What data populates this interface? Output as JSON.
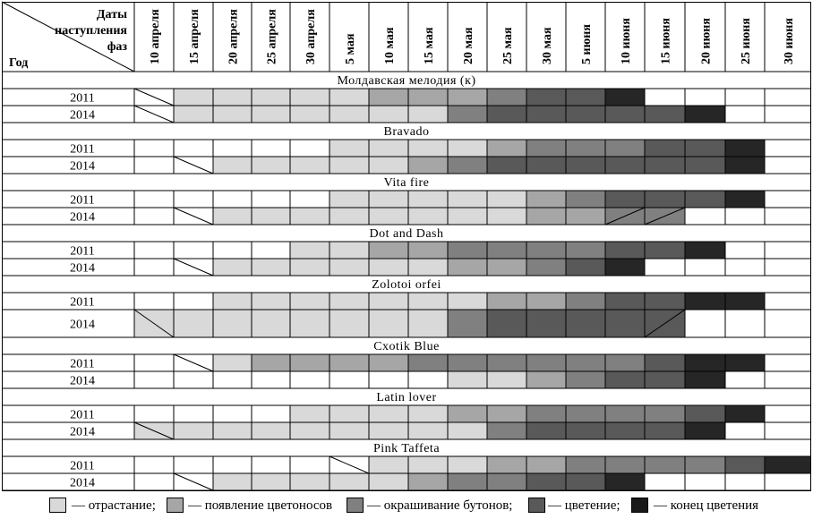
{
  "header": {
    "corner_dates_label_line1": "Даты",
    "corner_dates_label_line2": "наступления",
    "corner_dates_label_line3": "фаз",
    "corner_year_label": "Год",
    "dates": [
      "10 апреля",
      "15 апреля",
      "20 апреля",
      "25 апреля",
      "30 апреля",
      "5 мая",
      "10 мая",
      "15 мая",
      "20 мая",
      "25 мая",
      "30 мая",
      "5 июня",
      "10 июня",
      "15 июня",
      "20 июня",
      "25 июня",
      "30 июня"
    ]
  },
  "colors": {
    "w": "#ffffff",
    "a": "#d9d9d9",
    "b": "#a6a6a6",
    "c": "#808080",
    "d": "#595959",
    "e": "#262626"
  },
  "phase_table": {
    "varieties": [
      {
        "name": "Молдавская мелодия (к)",
        "rows": [
          {
            "year": "2011",
            "cells": [
              "wd",
              "a",
              "a",
              "a",
              "a",
              "a",
              "b",
              "b",
              "b",
              "c",
              "d",
              "d",
              "e",
              "w",
              "w",
              "w",
              "w"
            ]
          },
          {
            "year": "2014",
            "cells": [
              "wd",
              "a",
              "a",
              "a",
              "a",
              "a",
              "a",
              "a",
              "c",
              "d",
              "d",
              "d",
              "d",
              "d",
              "e",
              "w",
              "w"
            ]
          }
        ]
      },
      {
        "name": "Bravado",
        "rows": [
          {
            "year": "2011",
            "cells": [
              "w",
              "w",
              "w",
              "w",
              "w",
              "a",
              "a",
              "a",
              "a",
              "b",
              "c",
              "c",
              "c",
              "d",
              "d",
              "e",
              "w"
            ]
          },
          {
            "year": "2014",
            "cells": [
              "w",
              "wd",
              "a",
              "a",
              "a",
              "a",
              "a",
              "b",
              "c",
              "d",
              "d",
              "d",
              "d",
              "d",
              "d",
              "e",
              "w"
            ]
          }
        ]
      },
      {
        "name": "Vita fire",
        "rows": [
          {
            "year": "2011",
            "cells": [
              "w",
              "w",
              "w",
              "w",
              "w",
              "a",
              "a",
              "a",
              "a",
              "a",
              "b",
              "c",
              "d",
              "d",
              "d",
              "e",
              "w"
            ]
          },
          {
            "year": "2014",
            "cells": [
              "w",
              "wd",
              "a",
              "a",
              "a",
              "a",
              "a",
              "a",
              "a",
              "a",
              "b",
              "b",
              "cu",
              "cu",
              "w",
              "w",
              "w"
            ]
          }
        ]
      },
      {
        "name": "Dot and Dash",
        "rows": [
          {
            "year": "2011",
            "cells": [
              "w",
              "w",
              "w",
              "w",
              "a",
              "a",
              "b",
              "b",
              "c",
              "c",
              "c",
              "c",
              "d",
              "d",
              "e",
              "w",
              "w"
            ]
          },
          {
            "year": "2014",
            "cells": [
              "w",
              "wd",
              "a",
              "a",
              "a",
              "a",
              "a",
              "a",
              "b",
              "b",
              "c",
              "d",
              "e",
              "w",
              "w",
              "w",
              "w"
            ]
          }
        ]
      },
      {
        "name": "Zolotoi orfei",
        "rows": [
          {
            "year": "2011",
            "cells": [
              "w",
              "w",
              "a",
              "a",
              "a",
              "a",
              "a",
              "a",
              "a",
              "b",
              "b",
              "c",
              "d",
              "d",
              "e",
              "e",
              "w"
            ]
          },
          {
            "year": "2014",
            "cells": [
              "ad",
              "a",
              "a",
              "a",
              "a",
              "a",
              "a",
              "a",
              "c",
              "d",
              "d",
              "d",
              "d",
              "du",
              "w",
              "w",
              "w"
            ]
          }
        ]
      },
      {
        "name": "Cxotik Blue",
        "rows": [
          {
            "year": "2011",
            "cells": [
              "w",
              "wd",
              "a",
              "b",
              "b",
              "b",
              "b",
              "c",
              "c",
              "c",
              "c",
              "c",
              "c",
              "d",
              "e",
              "e",
              "w"
            ]
          },
          {
            "year": "2014",
            "cells": [
              "w",
              "w",
              "w",
              "w",
              "w",
              "w",
              "w",
              "w",
              "a",
              "a",
              "b",
              "c",
              "d",
              "d",
              "e",
              "w",
              "w"
            ]
          }
        ]
      },
      {
        "name": "Latin lover",
        "rows": [
          {
            "year": "2011",
            "cells": [
              "w",
              "w",
              "w",
              "w",
              "a",
              "a",
              "a",
              "a",
              "b",
              "b",
              "c",
              "c",
              "c",
              "c",
              "d",
              "e",
              "w"
            ]
          },
          {
            "year": "2014",
            "cells": [
              "ad",
              "a",
              "a",
              "a",
              "a",
              "a",
              "a",
              "a",
              "a",
              "c",
              "d",
              "d",
              "d",
              "d",
              "e",
              "w",
              "w"
            ]
          }
        ]
      },
      {
        "name": "Pink Taffeta",
        "rows": [
          {
            "year": "2011",
            "cells": [
              "w",
              "w",
              "w",
              "w",
              "w",
              "wd",
              "a",
              "a",
              "a",
              "b",
              "b",
              "c",
              "c",
              "c",
              "c",
              "d",
              "e"
            ]
          },
          {
            "year": "2014",
            "cells": [
              "w",
              "wd",
              "a",
              "a",
              "a",
              "a",
              "a",
              "b",
              "c",
              "c",
              "d",
              "d",
              "e",
              "w",
              "w",
              "w",
              "w"
            ]
          }
        ]
      }
    ]
  },
  "legend": [
    {
      "color": "#d9d9d9",
      "label": "— отрастание;"
    },
    {
      "color": "#a6a6a6",
      "label": "— появление цветоносов"
    },
    {
      "color": "#808080",
      "label": "— окрашивание бутонов;"
    },
    {
      "color": "#595959",
      "label": "— цветение;"
    },
    {
      "color": "#1a1a1a",
      "label": "— конец цветения"
    }
  ]
}
